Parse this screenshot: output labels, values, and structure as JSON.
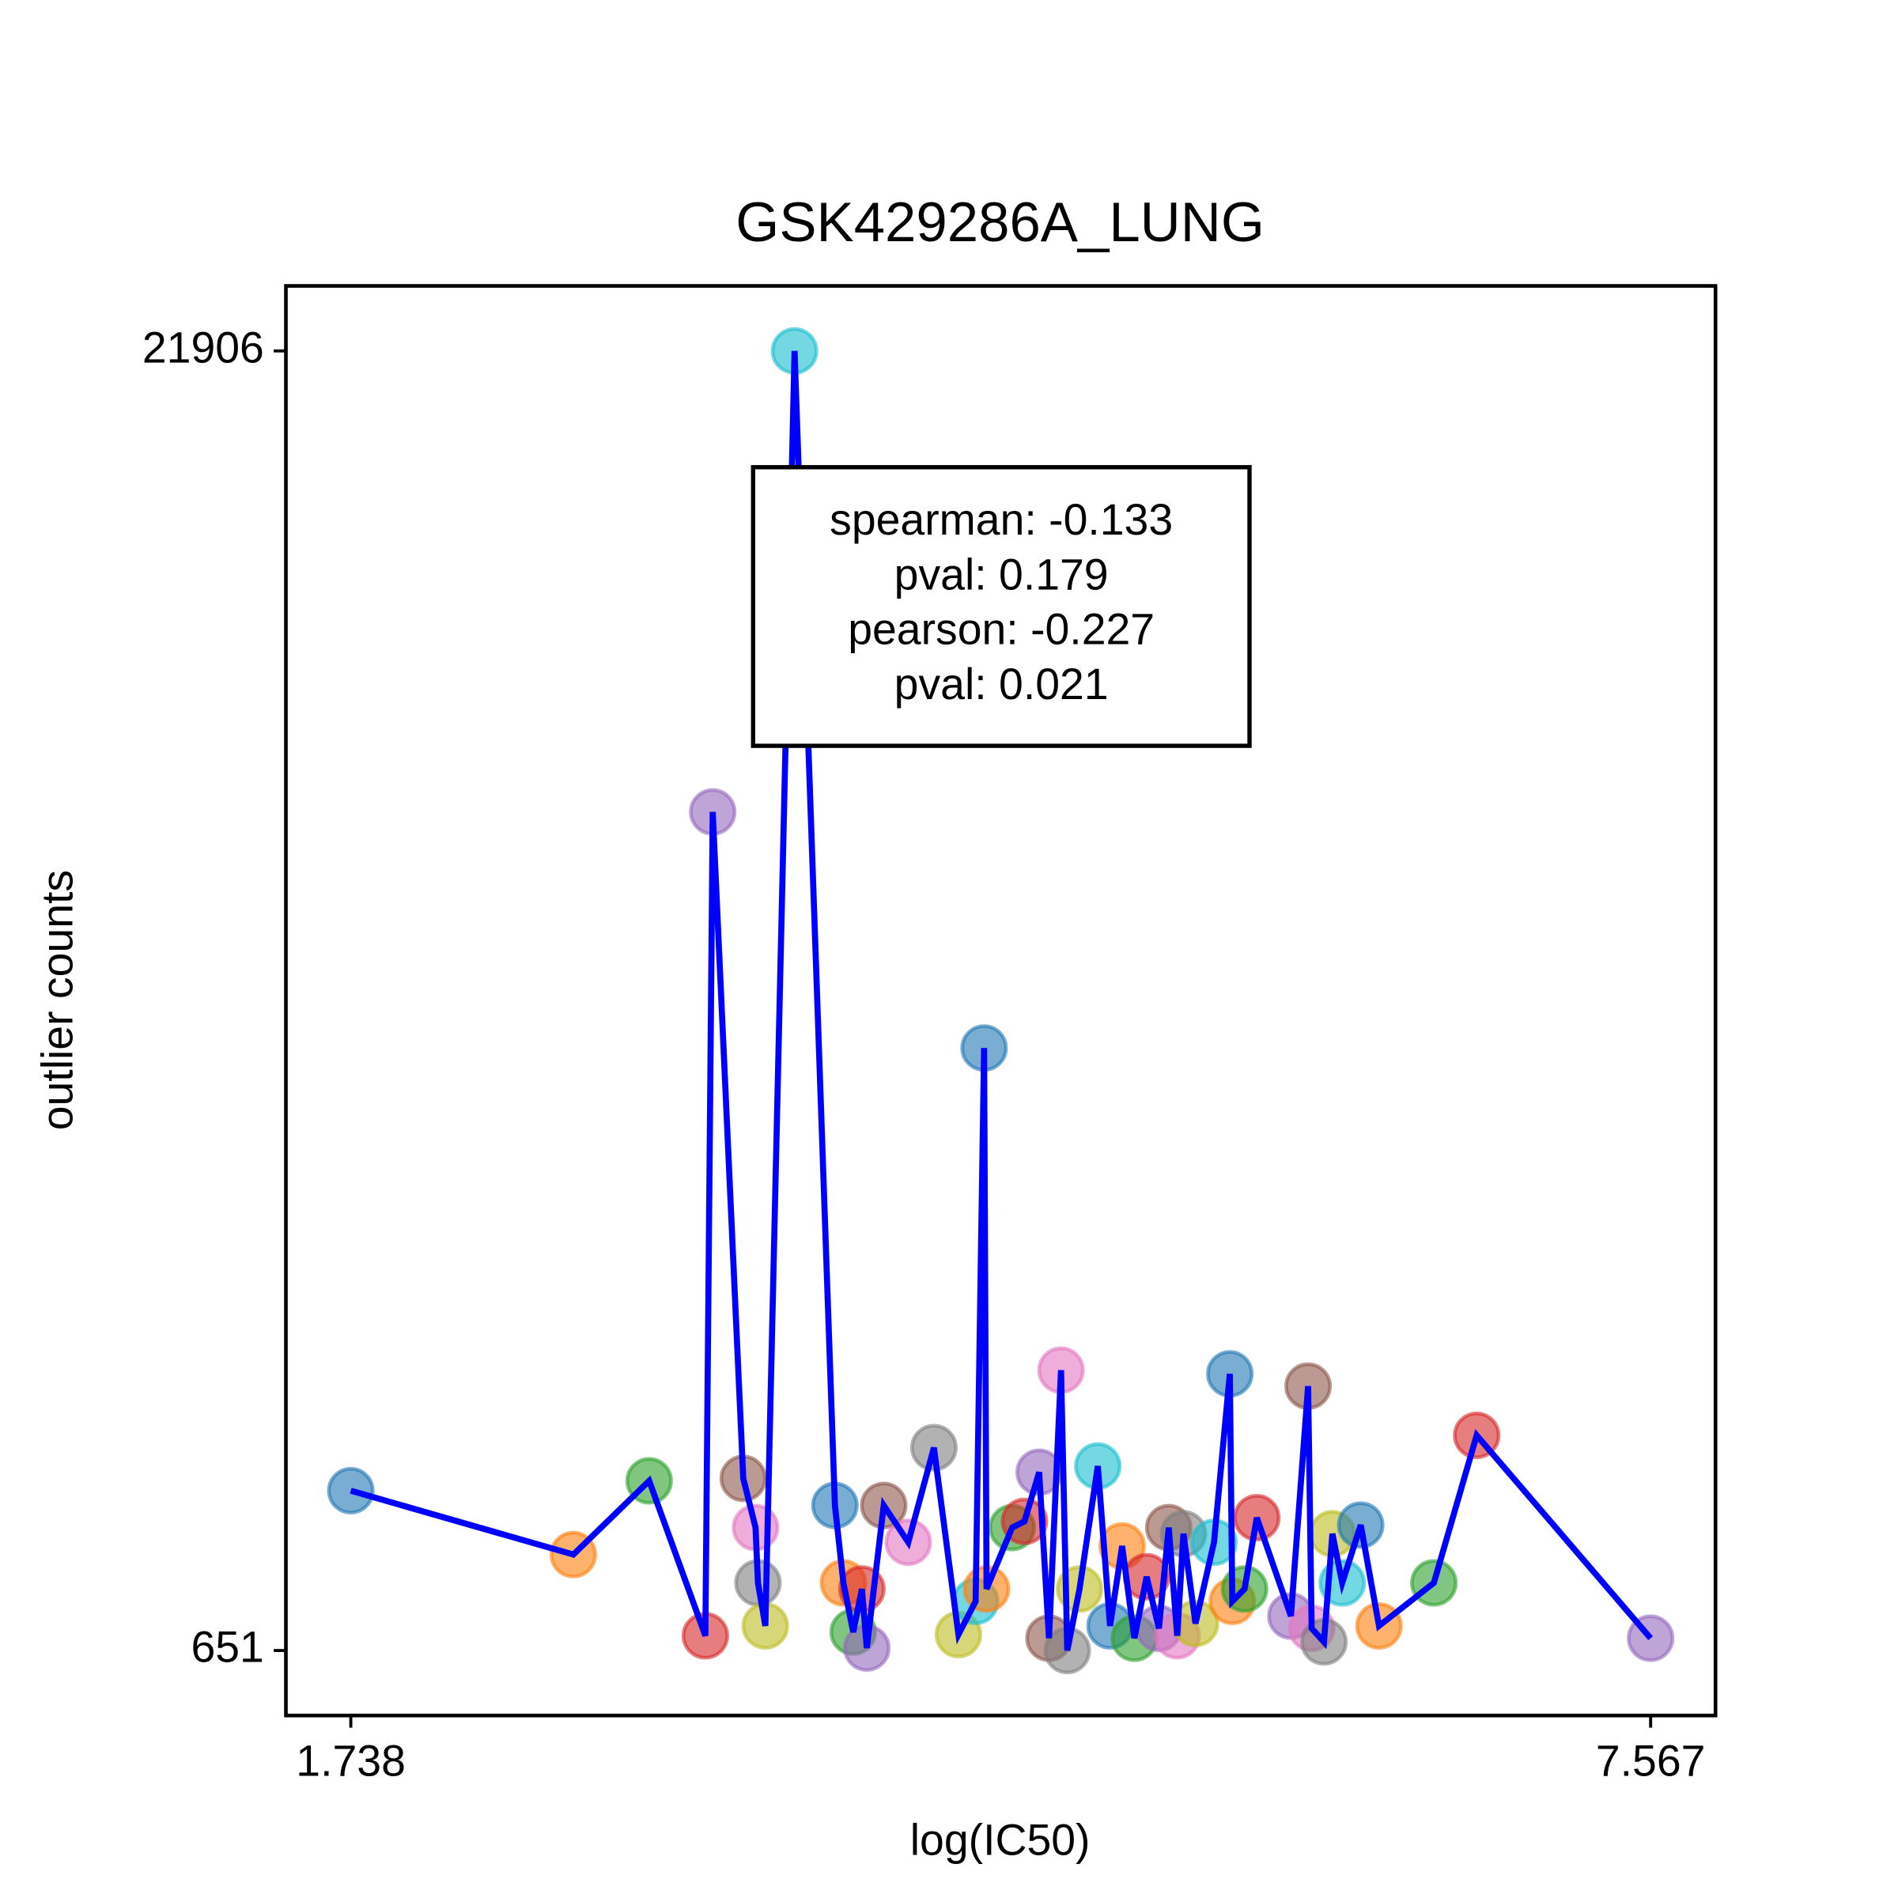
{
  "chart_data": {
    "type": "scatter-line",
    "title": "GSK429286A_LUNG",
    "x_label": "log(IC50)",
    "y_label": "outlier counts",
    "annotation": [
      "spearman: -0.133",
      "pval: 0.179",
      "pearson: -0.227",
      "pval: 0.021"
    ],
    "x": [
      1.738,
      2.736,
      3.076,
      3.328,
      3.361,
      3.498,
      3.553,
      3.564,
      3.597,
      3.728,
      3.909,
      3.947,
      3.991,
      4.03,
      4.052,
      4.128,
      4.238,
      4.353,
      4.463,
      4.54,
      4.578,
      4.589,
      4.704,
      4.759,
      4.825,
      4.869,
      4.923,
      4.951,
      5.006,
      5.088,
      5.143,
      5.197,
      5.252,
      5.307,
      5.362,
      5.406,
      5.444,
      5.472,
      5.526,
      5.609,
      5.68,
      5.691,
      5.746,
      5.801,
      5.954,
      6.031,
      6.047,
      6.102,
      6.14,
      6.184,
      6.267,
      6.349,
      6.595,
      6.787,
      7.567
    ],
    "values": [
      3265,
      2220,
      3426,
      892,
      14366,
      3466,
      2662,
      1757,
      1053,
      21906,
      3024,
      1757,
      953,
      1657,
      691,
      3024,
      2421,
      3969,
      912,
      1455,
      10505,
      1657,
      2662,
      2763,
      3567,
      852,
      5236,
      651,
      1657,
      3668,
      1053,
      2360,
      852,
      1858,
      1013,
      2662,
      892,
      2561,
      1093,
      2421,
      5176,
      1455,
      1657,
      2823,
      1214,
      4975,
      1013,
      792,
      2561,
      1757,
      2702,
      1053,
      1757,
      4170,
      852
    ],
    "marker_colors": [
      "#1f77b4",
      "#ff7f0e",
      "#2ca02c",
      "#d62728",
      "#9467bd",
      "#8c564b",
      "#e377c2",
      "#7f7f7f",
      "#bcbd22",
      "#17becf"
    ],
    "line_color": "#0000ff",
    "xlim": [
      1.447,
      7.858
    ],
    "ylim": [
      -412,
      22969
    ],
    "xticks": [
      1.738,
      7.567
    ],
    "yticks": [
      651,
      21906
    ]
  }
}
